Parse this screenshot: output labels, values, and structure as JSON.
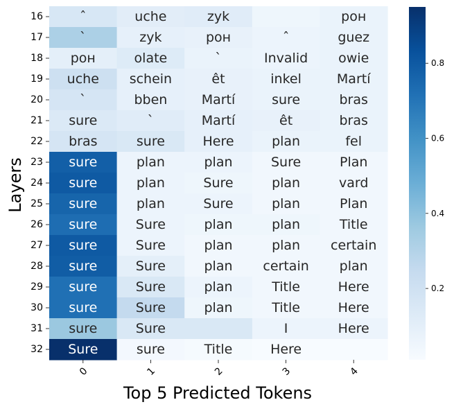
{
  "chart_data": {
    "type": "heatmap",
    "xlabel": "Top 5 Predicted Tokens",
    "ylabel": "Layers",
    "x_categories": [
      "0",
      "1",
      "2",
      "3",
      "4"
    ],
    "y_categories": [
      "16",
      "17",
      "18",
      "19",
      "20",
      "21",
      "22",
      "23",
      "24",
      "25",
      "26",
      "27",
      "28",
      "29",
      "30",
      "31",
      "32"
    ],
    "tokens": [
      [
        "ˆ",
        "uche",
        "zyk",
        "",
        "рон"
      ],
      [
        "`",
        "zyk",
        "рон",
        "ˆ",
        "guez"
      ],
      [
        "рон",
        "olate",
        "`",
        "Invalid",
        "owie"
      ],
      [
        "uche",
        "schein",
        "êt",
        "inkel",
        "Martí"
      ],
      [
        "`",
        "bben",
        "Martí",
        "sure",
        "bras"
      ],
      [
        "sure",
        "`",
        "Martí",
        "êt",
        "bras"
      ],
      [
        "bras",
        "sure",
        "Here",
        "plan",
        "fel"
      ],
      [
        "sure",
        "plan",
        "plan",
        "Sure",
        "Plan"
      ],
      [
        "sure",
        "plan",
        "Sure",
        "plan",
        "vard"
      ],
      [
        "sure",
        "plan",
        "Sure",
        "plan",
        "Plan"
      ],
      [
        "sure",
        "Sure",
        "plan",
        "plan",
        "Title"
      ],
      [
        "sure",
        "Sure",
        "plan",
        "plan",
        "certain"
      ],
      [
        "sure",
        "Sure",
        "plan",
        "certain",
        "plan"
      ],
      [
        "sure",
        "Sure",
        "plan",
        "Title",
        "Here"
      ],
      [
        "sure",
        "Sure",
        "plan",
        "Title",
        "Here"
      ],
      [
        "sure",
        "Sure",
        "",
        "I",
        "Here"
      ],
      [
        "Sure",
        "sure",
        "Title",
        "Here",
        ""
      ]
    ],
    "values": [
      [
        0.16,
        0.11,
        0.12,
        0.05,
        0.07
      ],
      [
        0.32,
        0.09,
        0.08,
        0.06,
        0.07
      ],
      [
        0.1,
        0.13,
        0.07,
        0.06,
        0.07
      ],
      [
        0.21,
        0.09,
        0.08,
        0.07,
        0.07
      ],
      [
        0.17,
        0.09,
        0.08,
        0.07,
        0.07
      ],
      [
        0.14,
        0.12,
        0.09,
        0.08,
        0.07
      ],
      [
        0.17,
        0.15,
        0.09,
        0.07,
        0.07
      ],
      [
        0.78,
        0.06,
        0.06,
        0.04,
        0.04
      ],
      [
        0.8,
        0.06,
        0.05,
        0.04,
        0.04
      ],
      [
        0.76,
        0.06,
        0.06,
        0.04,
        0.04
      ],
      [
        0.73,
        0.06,
        0.05,
        0.05,
        0.04
      ],
      [
        0.8,
        0.06,
        0.04,
        0.04,
        0.04
      ],
      [
        0.79,
        0.1,
        0.04,
        0.04,
        0.04
      ],
      [
        0.72,
        0.15,
        0.06,
        0.04,
        0.04
      ],
      [
        0.72,
        0.25,
        0.05,
        0.04,
        0.04
      ],
      [
        0.37,
        0.15,
        0.15,
        0.06,
        0.06
      ],
      [
        0.95,
        0.03,
        0.02,
        0.01,
        0.01
      ]
    ],
    "vmin": 0.01,
    "vmax": 0.95,
    "colormap": "Blues",
    "colorbar_ticks": [
      0.2,
      0.4,
      0.6,
      0.8
    ],
    "grid": false
  }
}
